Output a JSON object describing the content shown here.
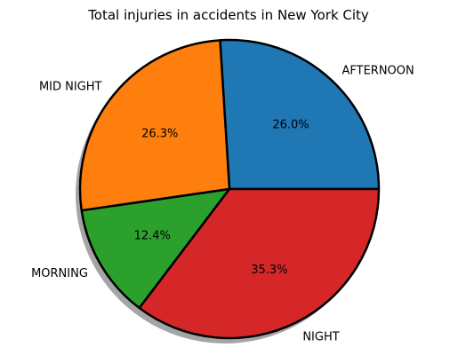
{
  "chart_data": {
    "type": "pie",
    "title": "Total injuries in accidents in New York City",
    "categories": [
      "AFTERNOON",
      "MID NIGHT",
      "MORNING",
      "NIGHT"
    ],
    "values": [
      26.0,
      26.3,
      12.4,
      35.3
    ],
    "value_labels": [
      "26.0%",
      "26.3%",
      "12.4%",
      "35.3%"
    ],
    "colors": [
      "#1f77b4",
      "#ff7f0e",
      "#2ca02c",
      "#d62728"
    ],
    "start_angle_deg": 0,
    "direction": "counterclockwise",
    "shadow": true,
    "edge_color": "#000000",
    "legend": "none"
  }
}
